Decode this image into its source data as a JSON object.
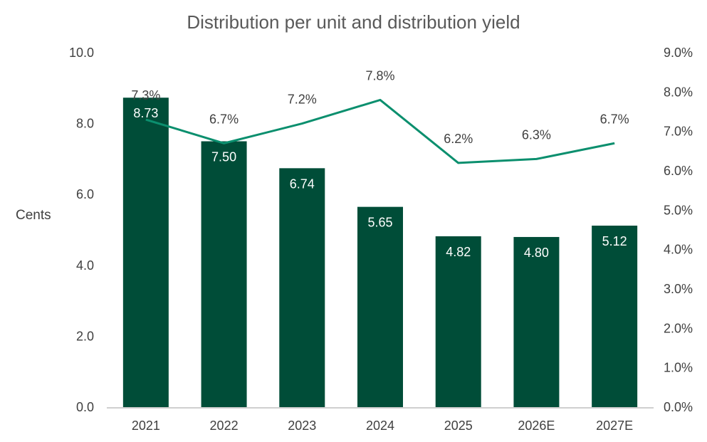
{
  "chart_data": {
    "type": "bar",
    "title": "Distribution per unit and distribution yield",
    "ylabel": "Cents",
    "y2label": "",
    "categories": [
      "2021",
      "2022",
      "2023",
      "2024",
      "2025",
      "2026E",
      "2027E"
    ],
    "series": [
      {
        "type": "bar",
        "axis": "left",
        "values": [
          8.73,
          7.5,
          6.74,
          5.65,
          4.82,
          4.8,
          5.12
        ],
        "labels": [
          "8.73",
          "7.50",
          "6.74",
          "5.65",
          "4.82",
          "4.80",
          "5.12"
        ],
        "color": "#004d38"
      },
      {
        "type": "line",
        "axis": "right",
        "values": [
          7.3,
          6.7,
          7.2,
          7.8,
          6.2,
          6.3,
          6.7
        ],
        "labels": [
          "7.3%",
          "6.7%",
          "7.2%",
          "7.8%",
          "6.2%",
          "6.3%",
          "6.7%"
        ],
        "color": "#0b8f6e"
      }
    ],
    "ylim": [
      0,
      10
    ],
    "y_ticks": [
      "0.0",
      "2.0",
      "4.0",
      "6.0",
      "8.0",
      "10.0"
    ],
    "y2lim": [
      0,
      9
    ],
    "y2_ticks": [
      "0.0%",
      "1.0%",
      "2.0%",
      "3.0%",
      "4.0%",
      "5.0%",
      "6.0%",
      "7.0%",
      "8.0%",
      "9.0%"
    ],
    "grid": false,
    "legend": "none"
  }
}
